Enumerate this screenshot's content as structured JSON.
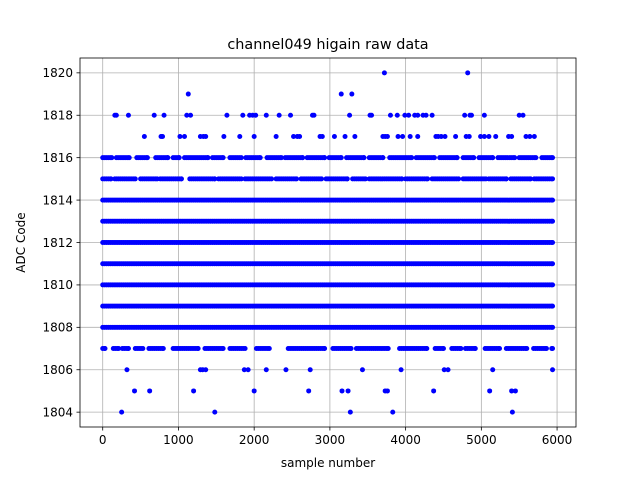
{
  "chart_data": {
    "type": "scatter",
    "title": "channel049 higain raw data",
    "xlabel": "sample number",
    "ylabel": "ADC Code",
    "xlim": [
      -300,
      6250
    ],
    "ylim": [
      1803.3,
      1820.7
    ],
    "x_ticks": [
      0,
      1000,
      2000,
      3000,
      4000,
      5000,
      6000
    ],
    "y_ticks": [
      1804,
      1806,
      1808,
      1810,
      1812,
      1814,
      1816,
      1818,
      1820
    ],
    "grid": true,
    "marker_color": "#0000ff",
    "n_samples": 5940,
    "levels": [
      {
        "y": 1804,
        "x": [
          250,
          1480,
          3270,
          3830,
          5410
        ]
      },
      {
        "y": 1805,
        "x": [
          420,
          620,
          1200,
          2000,
          2720,
          3160,
          3240,
          3730,
          3760,
          4370,
          5110,
          5400,
          5450
        ]
      },
      {
        "y": 1806,
        "x": [
          320,
          1290,
          1320,
          1360,
          1870,
          1920,
          2160,
          2420,
          2740,
          3430,
          3940,
          4510,
          4560,
          5150,
          5940
        ]
      },
      {
        "y": 1807,
        "x_ranges": [
          [
            0,
            30
          ],
          [
            140,
            210
          ],
          [
            260,
            340
          ],
          [
            430,
            530
          ],
          [
            610,
            800
          ],
          [
            930,
            1260
          ],
          [
            1350,
            1590
          ],
          [
            1680,
            1880
          ],
          [
            2030,
            2200
          ],
          [
            2450,
            2930
          ],
          [
            3040,
            3280
          ],
          [
            3350,
            3770
          ],
          [
            3920,
            4280
          ],
          [
            4390,
            4500
          ],
          [
            4610,
            4730
          ],
          [
            4790,
            4920
          ],
          [
            5050,
            5240
          ],
          [
            5330,
            5600
          ],
          [
            5690,
            5860
          ],
          [
            5930,
            5940
          ]
        ]
      },
      {
        "y": 1808,
        "x_ranges": [
          [
            0,
            5940
          ]
        ]
      },
      {
        "y": 1809,
        "x_ranges": [
          [
            0,
            5940
          ]
        ]
      },
      {
        "y": 1810,
        "x_ranges": [
          [
            0,
            5940
          ]
        ]
      },
      {
        "y": 1811,
        "x_ranges": [
          [
            0,
            5940
          ]
        ]
      },
      {
        "y": 1812,
        "x_ranges": [
          [
            0,
            5940
          ]
        ]
      },
      {
        "y": 1813,
        "x_ranges": [
          [
            0,
            5940
          ]
        ]
      },
      {
        "y": 1814,
        "x_ranges": [
          [
            0,
            5940
          ]
        ]
      },
      {
        "y": 1815,
        "x_ranges": [
          [
            0,
            110
          ],
          [
            160,
            430
          ],
          [
            500,
            720
          ],
          [
            760,
            1040
          ],
          [
            1150,
            1480
          ],
          [
            1530,
            1830
          ],
          [
            1880,
            2230
          ],
          [
            2290,
            2560
          ],
          [
            2620,
            2890
          ],
          [
            2950,
            3230
          ],
          [
            3300,
            3470
          ],
          [
            3520,
            3950
          ],
          [
            4000,
            4290
          ],
          [
            4350,
            4700
          ],
          [
            4760,
            5060
          ],
          [
            5100,
            5330
          ],
          [
            5390,
            5650
          ],
          [
            5700,
            5940
          ]
        ]
      },
      {
        "y": 1816,
        "x_ranges": [
          [
            0,
            120
          ],
          [
            180,
            350
          ],
          [
            450,
            590
          ],
          [
            700,
            860
          ],
          [
            930,
            1010
          ],
          [
            1080,
            1390
          ],
          [
            1450,
            1590
          ],
          [
            1680,
            1830
          ],
          [
            1890,
            2080
          ],
          [
            2170,
            2360
          ],
          [
            2410,
            2640
          ],
          [
            2700,
            2930
          ],
          [
            2990,
            3150
          ],
          [
            3220,
            3450
          ],
          [
            3520,
            3700
          ],
          [
            3790,
            4080
          ],
          [
            4140,
            4380
          ],
          [
            4450,
            4680
          ],
          [
            4760,
            4900
          ],
          [
            4970,
            5150
          ],
          [
            5220,
            5440
          ],
          [
            5500,
            5720
          ],
          [
            5800,
            5940
          ]
        ]
      },
      {
        "y": 1817,
        "x": [
          550,
          770,
          790,
          1020,
          1080,
          1290,
          1330,
          1360,
          1600,
          1810,
          2000,
          2290,
          2520,
          2570,
          2600,
          2870,
          2900,
          3060,
          3200,
          3330,
          3700,
          3730,
          3760,
          3900,
          3960,
          4060,
          4160,
          4400,
          4430,
          4470,
          4520,
          4660,
          4800,
          4840,
          4990,
          5040,
          5100,
          5190,
          5360,
          5400,
          5590,
          5640,
          5700
        ]
      },
      {
        "y": 1818,
        "x": [
          160,
          180,
          340,
          680,
          810,
          1110,
          1160,
          1640,
          1850,
          1940,
          1980,
          2020,
          2160,
          2330,
          2480,
          2770,
          2790,
          3260,
          3530,
          3550,
          3800,
          3890,
          3990,
          4040,
          4120,
          4160,
          4230,
          4270,
          4350,
          4780,
          4850,
          4870,
          5040,
          5500,
          5550
        ]
      },
      {
        "y": 1819,
        "x": [
          1130,
          3150,
          3290
        ]
      },
      {
        "y": 1820,
        "x": [
          3720,
          4820
        ]
      }
    ]
  }
}
